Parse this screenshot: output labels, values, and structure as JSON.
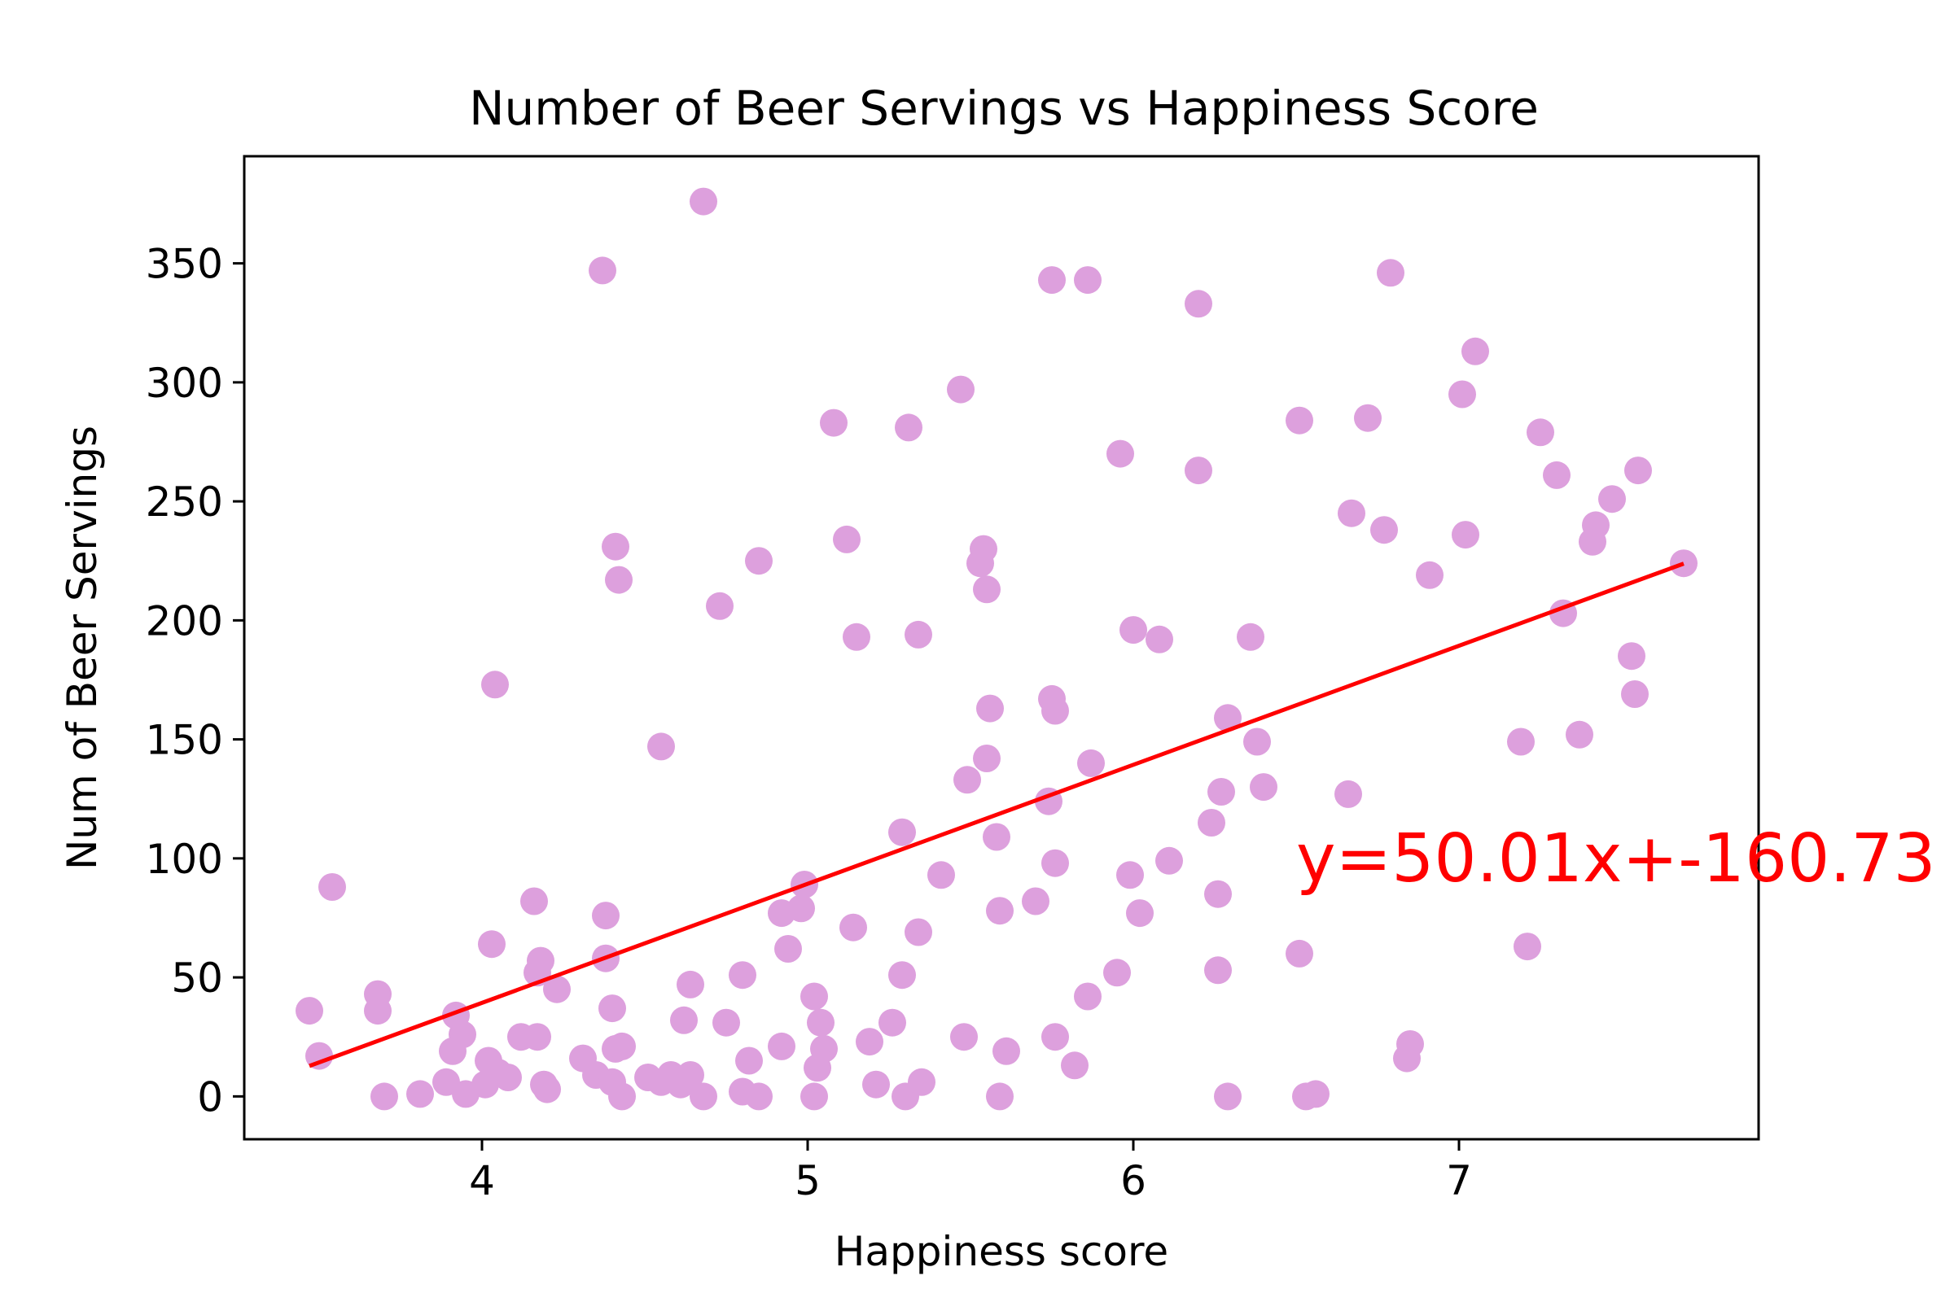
{
  "chart_data": {
    "type": "scatter",
    "title": "Number of Beer Servings vs Happiness Score",
    "xlabel": "Happiness score",
    "ylabel": "Num of Beer Servings",
    "xlim": [
      3.27,
      7.92
    ],
    "ylim": [
      -18,
      395
    ],
    "xticks": [
      4,
      5,
      6,
      7
    ],
    "yticks": [
      0,
      50,
      100,
      150,
      200,
      250,
      300,
      350
    ],
    "grid": false,
    "colors": {
      "points": "#dda0dd",
      "regression": "#ff0000",
      "annotation": "#ff0000",
      "axes": "#000000"
    },
    "series": [
      {
        "points": [
          [
            3.47,
            36
          ],
          [
            3.5,
            17
          ],
          [
            3.54,
            88
          ],
          [
            3.68,
            43
          ],
          [
            3.68,
            36
          ],
          [
            3.7,
            0
          ],
          [
            3.81,
            1
          ],
          [
            3.89,
            6
          ],
          [
            3.91,
            19
          ],
          [
            3.92,
            34
          ],
          [
            3.94,
            26
          ],
          [
            3.95,
            1
          ],
          [
            4.01,
            5
          ],
          [
            4.02,
            15
          ],
          [
            4.03,
            64
          ],
          [
            4.04,
            173
          ],
          [
            4.05,
            10
          ],
          [
            4.08,
            8
          ],
          [
            4.12,
            25
          ],
          [
            4.16,
            82
          ],
          [
            4.17,
            52
          ],
          [
            4.17,
            25
          ],
          [
            4.18,
            57
          ],
          [
            4.19,
            5
          ],
          [
            4.2,
            3
          ],
          [
            4.23,
            45
          ],
          [
            4.31,
            16
          ],
          [
            4.35,
            9
          ],
          [
            4.37,
            347
          ],
          [
            4.38,
            58
          ],
          [
            4.38,
            76
          ],
          [
            4.4,
            37
          ],
          [
            4.4,
            6
          ],
          [
            4.41,
            231
          ],
          [
            4.42,
            217
          ],
          [
            4.41,
            20
          ],
          [
            4.43,
            21
          ],
          [
            4.43,
            0
          ],
          [
            4.51,
            8
          ],
          [
            4.55,
            147
          ],
          [
            4.55,
            6
          ],
          [
            4.58,
            9
          ],
          [
            4.61,
            5
          ],
          [
            4.62,
            32
          ],
          [
            4.64,
            47
          ],
          [
            4.64,
            9
          ],
          [
            4.68,
            376
          ],
          [
            4.68,
            0
          ],
          [
            4.73,
            206
          ],
          [
            4.75,
            31
          ],
          [
            4.8,
            51
          ],
          [
            4.8,
            2
          ],
          [
            4.82,
            15
          ],
          [
            4.85,
            225
          ],
          [
            4.85,
            0
          ],
          [
            4.92,
            21
          ],
          [
            4.92,
            77
          ],
          [
            4.94,
            62
          ],
          [
            4.98,
            79
          ],
          [
            4.99,
            89
          ],
          [
            5.02,
            42
          ],
          [
            5.02,
            0
          ],
          [
            5.03,
            12
          ],
          [
            5.04,
            31
          ],
          [
            5.05,
            20
          ],
          [
            5.08,
            283
          ],
          [
            5.12,
            234
          ],
          [
            5.14,
            71
          ],
          [
            5.15,
            193
          ],
          [
            5.19,
            23
          ],
          [
            5.21,
            5
          ],
          [
            5.26,
            31
          ],
          [
            5.29,
            111
          ],
          [
            5.29,
            51
          ],
          [
            5.3,
            0
          ],
          [
            5.31,
            281
          ],
          [
            5.34,
            69
          ],
          [
            5.34,
            194
          ],
          [
            5.35,
            6
          ],
          [
            5.41,
            93
          ],
          [
            5.47,
            297
          ],
          [
            5.48,
            25
          ],
          [
            5.49,
            133
          ],
          [
            5.53,
            224
          ],
          [
            5.54,
            230
          ],
          [
            5.55,
            213
          ],
          [
            5.55,
            142
          ],
          [
            5.56,
            163
          ],
          [
            5.58,
            109
          ],
          [
            5.59,
            78
          ],
          [
            5.59,
            0
          ],
          [
            5.61,
            19
          ],
          [
            5.7,
            82
          ],
          [
            5.74,
            124
          ],
          [
            5.75,
            343
          ],
          [
            5.75,
            167
          ],
          [
            5.76,
            162
          ],
          [
            5.76,
            98
          ],
          [
            5.76,
            25
          ],
          [
            5.82,
            13
          ],
          [
            5.86,
            343
          ],
          [
            5.86,
            42
          ],
          [
            5.87,
            140
          ],
          [
            5.95,
            52
          ],
          [
            5.96,
            270
          ],
          [
            5.99,
            93
          ],
          [
            6.0,
            196
          ],
          [
            6.02,
            77
          ],
          [
            6.08,
            192
          ],
          [
            6.11,
            99
          ],
          [
            6.2,
            333
          ],
          [
            6.2,
            263
          ],
          [
            6.24,
            115
          ],
          [
            6.26,
            53
          ],
          [
            6.26,
            85
          ],
          [
            6.27,
            128
          ],
          [
            6.29,
            159
          ],
          [
            6.29,
            0
          ],
          [
            6.36,
            193
          ],
          [
            6.38,
            149
          ],
          [
            6.4,
            130
          ],
          [
            6.51,
            284
          ],
          [
            6.51,
            60
          ],
          [
            6.53,
            0
          ],
          [
            6.56,
            1
          ],
          [
            6.66,
            127
          ],
          [
            6.67,
            245
          ],
          [
            6.72,
            285
          ],
          [
            6.77,
            238
          ],
          [
            6.79,
            346
          ],
          [
            6.84,
            16
          ],
          [
            6.85,
            22
          ],
          [
            6.91,
            219
          ],
          [
            7.01,
            295
          ],
          [
            7.02,
            236
          ],
          [
            7.05,
            313
          ],
          [
            7.19,
            149
          ],
          [
            7.21,
            63
          ],
          [
            7.25,
            279
          ],
          [
            7.3,
            261
          ],
          [
            7.32,
            203
          ],
          [
            7.37,
            152
          ],
          [
            7.41,
            233
          ],
          [
            7.42,
            240
          ],
          [
            7.47,
            251
          ],
          [
            7.53,
            185
          ],
          [
            7.54,
            169
          ],
          [
            7.55,
            263
          ],
          [
            7.69,
            224
          ]
        ]
      }
    ],
    "regression": {
      "slope": 50.01,
      "intercept": -160.73,
      "x_range": [
        3.47,
        7.69
      ]
    },
    "annotation": {
      "text": "y=50.01x+-160.73",
      "x": 6.5,
      "y": 100
    }
  }
}
